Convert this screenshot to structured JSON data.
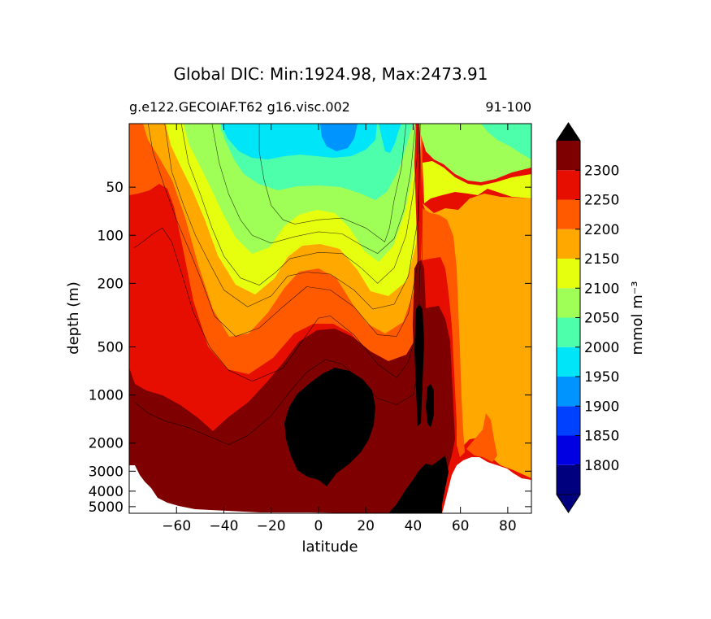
{
  "chart_data": {
    "type": "contour",
    "title": "Global DIC: Min:1924.98, Max:2473.91",
    "subtitle_left": "g.e122.GECOIAF.T62 g16.visc.002",
    "subtitle_right": "91-100",
    "xlabel": "latitude",
    "ylabel": "depth (m)",
    "xlim": [
      -80,
      90
    ],
    "ylim": [
      5500,
      20
    ],
    "yscale": "log",
    "xticks": [
      -60,
      -40,
      -20,
      0,
      20,
      40,
      60,
      80
    ],
    "xtick_labels": [
      "−60",
      "−40",
      "−20",
      "0",
      "20",
      "40",
      "60",
      "80"
    ],
    "yticks": [
      50,
      100,
      200,
      500,
      1000,
      2000,
      3000,
      4000,
      5000
    ],
    "ytick_labels": [
      "50",
      "100",
      "200",
      "500",
      "1000",
      "2000",
      "3000",
      "4000",
      "5000"
    ],
    "colorbar": {
      "label": "mmol m⁻³",
      "levels": [
        1800,
        1850,
        1900,
        1950,
        2000,
        2050,
        2100,
        2150,
        2200,
        2250,
        2300
      ],
      "tick_labels": [
        "1800",
        "1850",
        "1900",
        "1950",
        "2000",
        "2050",
        "2100",
        "2150",
        "2200",
        "2250",
        "2300"
      ],
      "colors": [
        "#00007f",
        "#0000e3",
        "#0040ff",
        "#0094ff",
        "#00e5f8",
        "#4dffaa",
        "#a0ff56",
        "#e6ff0e",
        "#ffa800",
        "#ff5a00",
        "#e60e00",
        "#7f0000"
      ],
      "under_color": "#00007f",
      "over_color": "#000000",
      "extend": "both"
    },
    "contour_lines": [
      {
        "level": 2000,
        "points": [
          [
            -25,
            20
          ],
          [
            -25,
            30
          ],
          [
            -23,
            45
          ],
          [
            -20,
            65
          ],
          [
            -15,
            80
          ],
          [
            -10,
            85
          ],
          [
            0,
            80
          ],
          [
            10,
            78
          ],
          [
            20,
            90
          ],
          [
            28,
            110
          ],
          [
            30,
            90
          ],
          [
            32,
            60
          ],
          [
            35,
            38
          ],
          [
            37,
            20
          ]
        ]
      },
      {
        "level": 2050,
        "points": [
          [
            -45,
            20
          ],
          [
            -42,
            35
          ],
          [
            -38,
            55
          ],
          [
            -33,
            80
          ],
          [
            -28,
            100
          ],
          [
            -20,
            112
          ],
          [
            -10,
            102
          ],
          [
            0,
            95
          ],
          [
            10,
            98
          ],
          [
            18,
            115
          ],
          [
            25,
            130
          ],
          [
            32,
            105
          ],
          [
            36,
            70
          ],
          [
            39,
            40
          ],
          [
            41,
            20
          ]
        ]
      },
      {
        "level": 2100,
        "points": [
          [
            -58,
            20
          ],
          [
            -55,
            35
          ],
          [
            -50,
            55
          ],
          [
            -45,
            90
          ],
          [
            -40,
            135
          ],
          [
            -33,
            185
          ],
          [
            -25,
            205
          ],
          [
            -18,
            170
          ],
          [
            -12,
            140
          ],
          [
            0,
            128
          ],
          [
            10,
            130
          ],
          [
            18,
            160
          ],
          [
            25,
            200
          ],
          [
            32,
            160
          ],
          [
            37,
            100
          ],
          [
            40,
            55
          ],
          [
            42,
            30
          ],
          [
            42,
            20
          ]
        ]
      },
      {
        "level": 2150,
        "points": [
          [
            -65,
            20
          ],
          [
            -62,
            40
          ],
          [
            -57,
            65
          ],
          [
            -52,
            100
          ],
          [
            -46,
            150
          ],
          [
            -40,
            220
          ],
          [
            -30,
            280
          ],
          [
            -20,
            240
          ],
          [
            -13,
            180
          ],
          [
            -5,
            170
          ],
          [
            5,
            175
          ],
          [
            15,
            220
          ],
          [
            23,
            290
          ],
          [
            32,
            270
          ],
          [
            38,
            180
          ],
          [
            42,
            80
          ],
          [
            43,
            20
          ]
        ]
      },
      {
        "level": 2200,
        "points": [
          [
            -72,
            20
          ],
          [
            -70,
            30
          ],
          [
            -65,
            50
          ],
          [
            -60,
            80
          ],
          [
            -54,
            130
          ],
          [
            -49,
            200
          ],
          [
            -44,
            320
          ],
          [
            -35,
            430
          ],
          [
            -25,
            380
          ],
          [
            -15,
            280
          ],
          [
            -5,
            210
          ],
          [
            5,
            220
          ],
          [
            15,
            280
          ],
          [
            25,
            420
          ],
          [
            33,
            430
          ],
          [
            38,
            310
          ],
          [
            42,
            150
          ],
          [
            43,
            20
          ]
        ]
      },
      {
        "level": 2250,
        "points": [
          [
            -78,
            120
          ],
          [
            -75,
            112
          ],
          [
            -70,
            98
          ],
          [
            -66,
            90
          ],
          [
            -62,
            110
          ],
          [
            -58,
            170
          ],
          [
            -53,
            300
          ],
          [
            -46,
            500
          ],
          [
            -38,
            700
          ],
          [
            -28,
            820
          ],
          [
            -15,
            680
          ],
          [
            -5,
            420
          ],
          [
            0,
            330
          ],
          [
            5,
            320
          ],
          [
            15,
            420
          ],
          [
            25,
            640
          ],
          [
            33,
            780
          ],
          [
            38,
            620
          ],
          [
            42,
            380
          ],
          [
            43,
            150
          ]
        ]
      },
      {
        "level": 2300,
        "points": [
          [
            -78,
            1100
          ],
          [
            -72,
            1300
          ],
          [
            -65,
            1450
          ],
          [
            -55,
            1600
          ],
          [
            -45,
            1850
          ],
          [
            -38,
            2050
          ],
          [
            -30,
            1800
          ],
          [
            -20,
            1350
          ],
          [
            -12,
            950
          ],
          [
            -5,
            720
          ],
          [
            3,
            600
          ],
          [
            10,
            640
          ],
          [
            18,
            820
          ],
          [
            25,
            1050
          ],
          [
            33,
            1150
          ],
          [
            40,
            1000
          ],
          [
            43,
            600
          ]
        ]
      }
    ],
    "black_region_note": "values above 2300 shown in black (max 2473.91) near 20–30° latitude and 1000–4500 m depth",
    "grid": false
  }
}
